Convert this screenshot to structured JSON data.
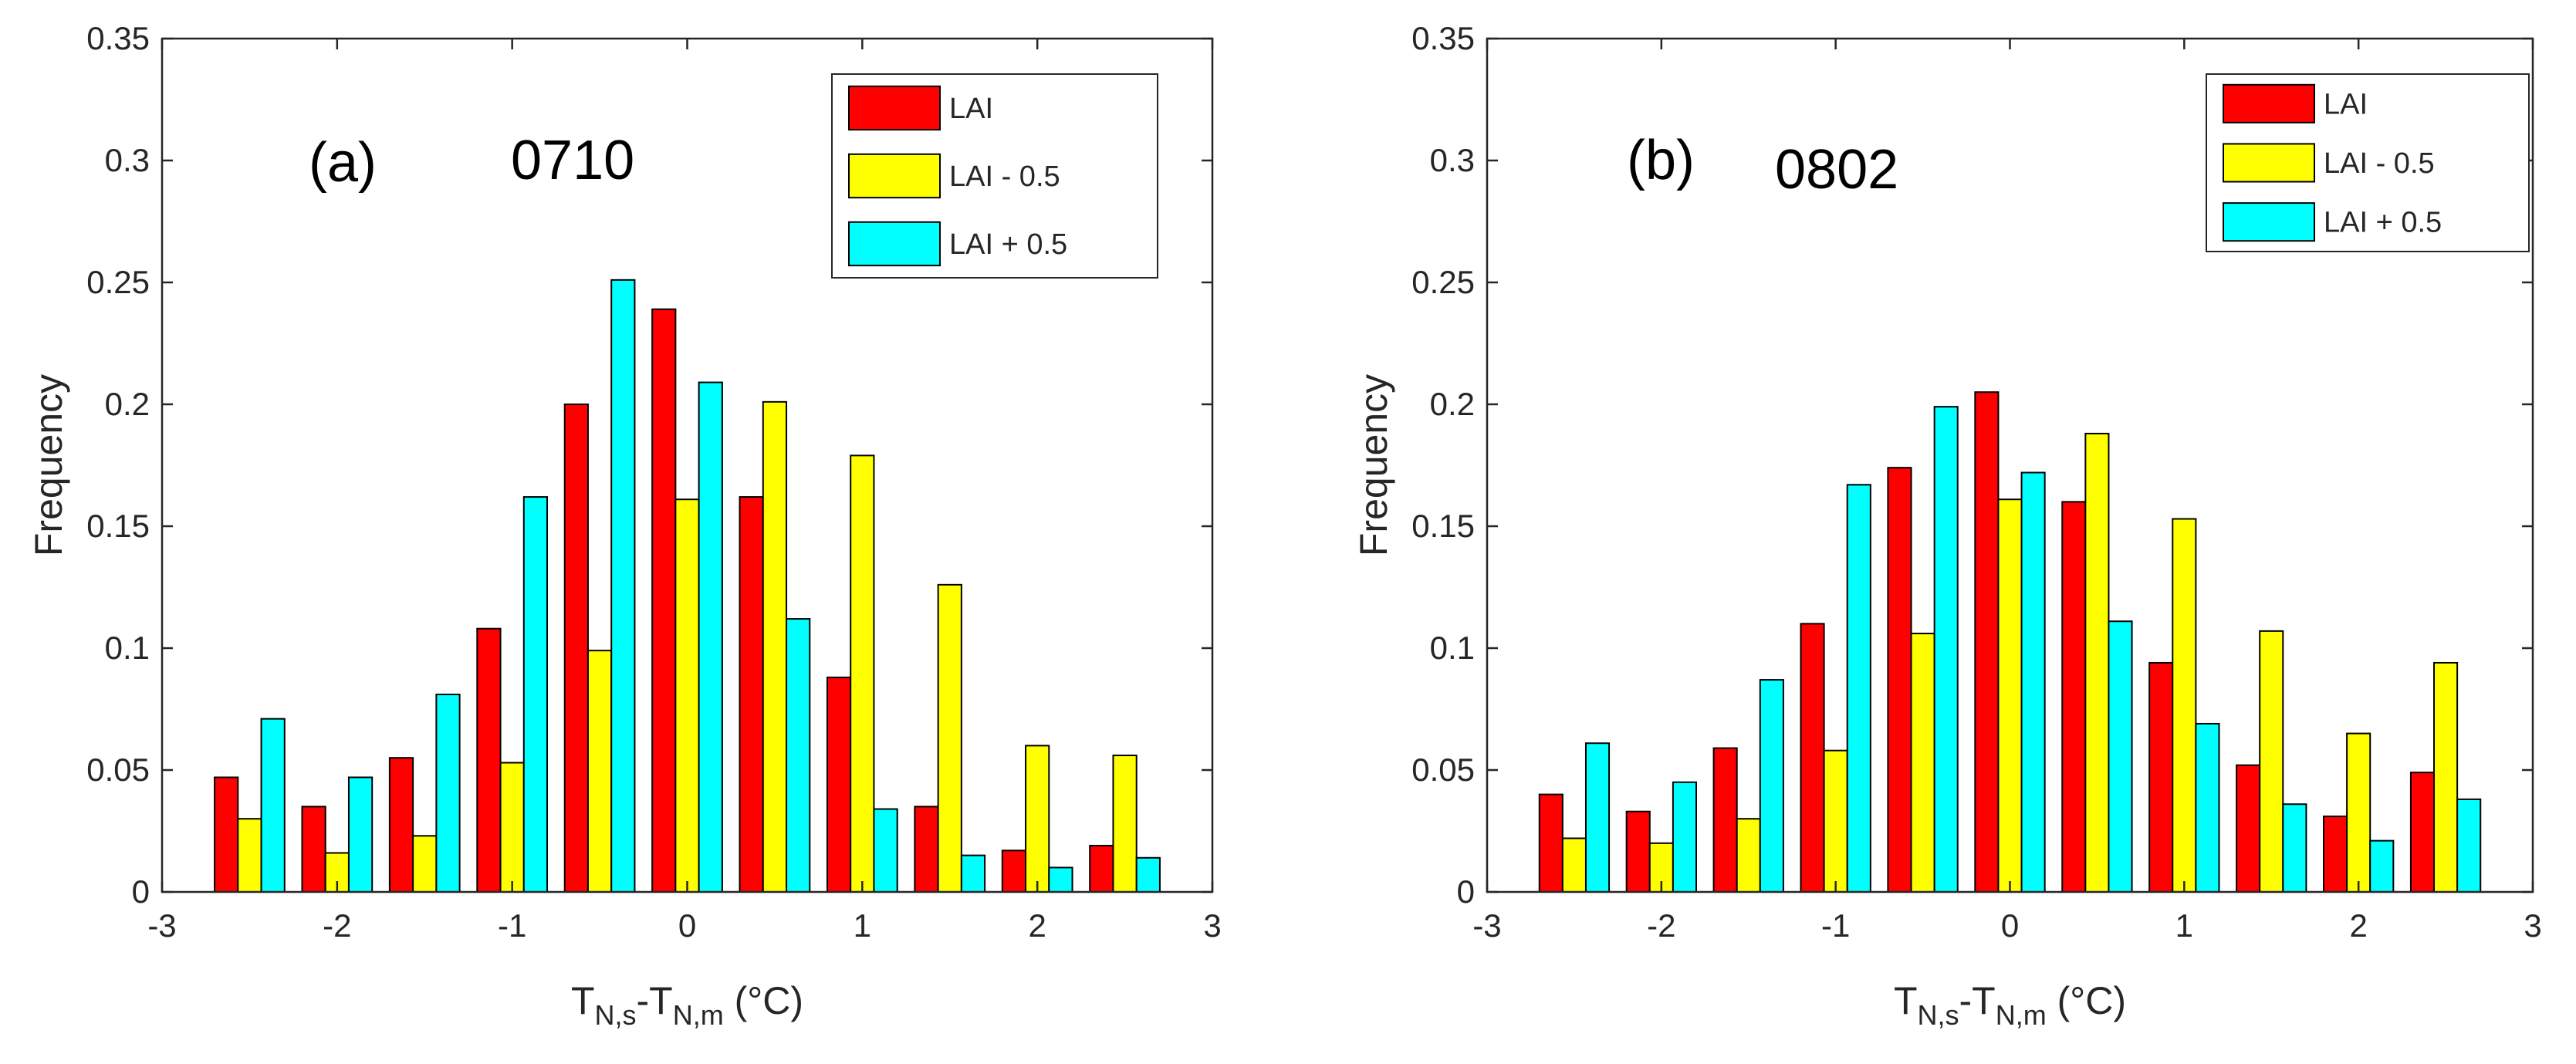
{
  "chart_data": [
    {
      "type": "bar",
      "panel_label": "(a)",
      "date_label": "0710",
      "ylabel": "Frequency",
      "xlabel": {
        "base": "T",
        "sub1": "N,s",
        "dash": "-T",
        "sub2": "N,m",
        "unit": " (°C)"
      },
      "xlim": [
        -3,
        3
      ],
      "ylim": [
        0,
        0.35
      ],
      "xticks": [
        "-3",
        "-2",
        "-1",
        "0",
        "1",
        "2",
        "3"
      ],
      "yticks": [
        "0",
        "0.05",
        "0.1",
        "0.15",
        "0.2",
        "0.25",
        "0.3",
        "0.35"
      ],
      "x": [
        -2.5,
        -2.0,
        -1.5,
        -1.0,
        -0.5,
        0.0,
        0.5,
        1.0,
        1.5,
        2.0,
        2.5
      ],
      "legend_position": "top-right",
      "series": [
        {
          "name": "LAI",
          "color": "#ff0000",
          "values": [
            0.047,
            0.035,
            0.055,
            0.108,
            0.2,
            0.239,
            0.162,
            0.088,
            0.035,
            0.017,
            0.019
          ]
        },
        {
          "name": "LAI - 0.5",
          "color": "#ffff00",
          "values": [
            0.03,
            0.016,
            0.023,
            0.053,
            0.099,
            0.161,
            0.201,
            0.179,
            0.126,
            0.06,
            0.056
          ]
        },
        {
          "name": "LAI + 0.5",
          "color": "#00ffff",
          "values": [
            0.071,
            0.047,
            0.081,
            0.162,
            0.251,
            0.209,
            0.112,
            0.034,
            0.015,
            0.01,
            0.014
          ]
        }
      ]
    },
    {
      "type": "bar",
      "panel_label": "(b)",
      "date_label": "0802",
      "ylabel": "Frequency",
      "xlabel": {
        "base": "T",
        "sub1": "N,s",
        "dash": "-T",
        "sub2": "N,m",
        "unit": " (°C)"
      },
      "xlim": [
        -3,
        3
      ],
      "ylim": [
        0,
        0.35
      ],
      "xticks": [
        "-3",
        "-2",
        "-1",
        "0",
        "1",
        "2",
        "3"
      ],
      "yticks": [
        "0",
        "0.05",
        "0.1",
        "0.15",
        "0.2",
        "0.25",
        "0.3",
        "0.35"
      ],
      "x": [
        -2.5,
        -2.0,
        -1.5,
        -1.0,
        -0.5,
        0.0,
        0.5,
        1.0,
        1.5,
        2.0,
        2.5
      ],
      "legend_position": "top-right",
      "series": [
        {
          "name": "LAI",
          "color": "#ff0000",
          "values": [
            0.04,
            0.033,
            0.059,
            0.11,
            0.174,
            0.205,
            0.16,
            0.094,
            0.052,
            0.031,
            0.049
          ]
        },
        {
          "name": "LAI - 0.5",
          "color": "#ffff00",
          "values": [
            0.022,
            0.02,
            0.03,
            0.058,
            0.106,
            0.161,
            0.188,
            0.153,
            0.107,
            0.065,
            0.094
          ]
        },
        {
          "name": "LAI + 0.5",
          "color": "#00ffff",
          "values": [
            0.061,
            0.045,
            0.087,
            0.167,
            0.199,
            0.172,
            0.111,
            0.069,
            0.036,
            0.021,
            0.038
          ]
        }
      ]
    }
  ]
}
